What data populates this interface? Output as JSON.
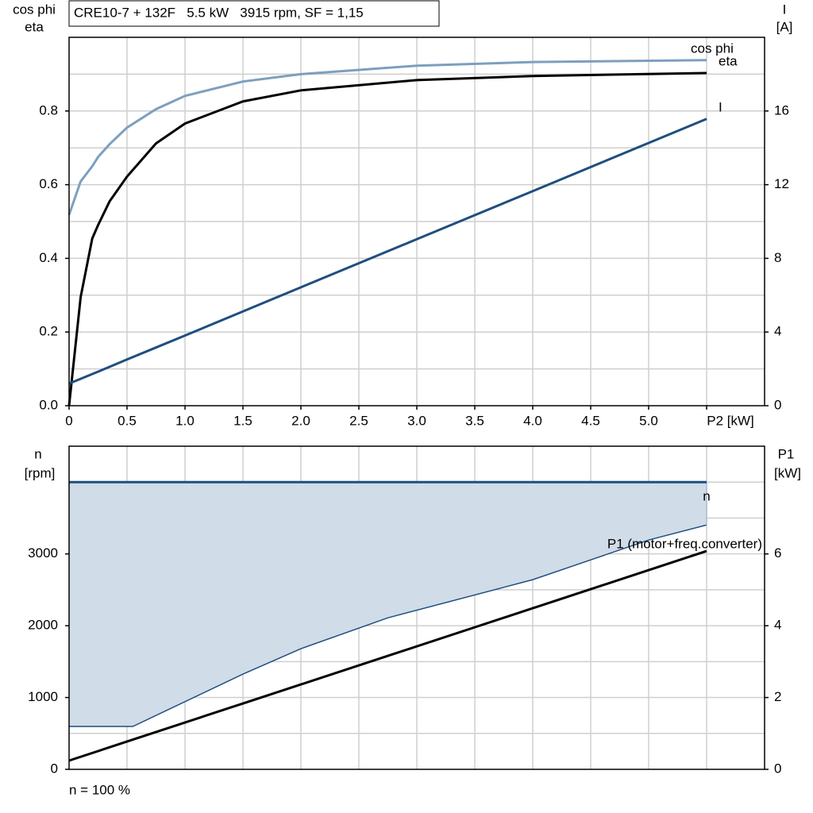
{
  "chart_data": [
    {
      "type": "line",
      "title": "CRE10-7 + 132F   5.5 kW   3915 rpm, SF = 1,15",
      "ylabel": [
        "cos phi",
        "eta"
      ],
      "y2label": [
        "I",
        "[A]"
      ],
      "x": [
        0,
        0.1,
        0.2,
        0.25,
        0.35,
        0.5,
        0.75,
        1.0,
        1.5,
        2.0,
        3.0,
        4.0,
        5.5
      ],
      "series": [
        {
          "name": "cos phi",
          "color": "#7d9fbf",
          "values": [
            0.518,
            0.609,
            0.65,
            0.675,
            0.71,
            0.755,
            0.805,
            0.841,
            0.88,
            0.9,
            0.923,
            0.933,
            0.938
          ]
        },
        {
          "name": "eta",
          "color": "#000000",
          "values": [
            0,
            0.295,
            0.454,
            0.49,
            0.555,
            0.622,
            0.712,
            0.766,
            0.826,
            0.856,
            0.884,
            0.895,
            0.903
          ]
        },
        {
          "name": "I",
          "color": "#1f4e7f",
          "axis": "y2",
          "values": [
            1.2,
            1.46,
            1.72,
            1.85,
            2.11,
            2.51,
            3.16,
            3.81,
            5.12,
            6.43,
            9.04,
            11.65,
            15.57
          ]
        }
      ],
      "xlim": [
        0,
        6
      ],
      "xticks": [
        0,
        0.5,
        {
          "value": 1,
          "label": "1.0"
        },
        1.5,
        {
          "value": 2,
          "label": "2.0"
        },
        2.5,
        {
          "value": 3,
          "label": "3.0"
        },
        3.5,
        {
          "value": 4,
          "label": "4.0"
        },
        4.5,
        {
          "value": 5,
          "label": "5.0"
        },
        {
          "value": 5.5,
          "label": "P2 [kW]"
        }
      ],
      "xgrid": [
        0.5,
        1,
        1.5,
        2,
        2.5,
        3,
        3.5,
        4,
        4.5,
        5,
        5.5
      ],
      "ylim": [
        0,
        1
      ],
      "yticks": [
        {
          "value": 0,
          "label": "0.0"
        },
        0.2,
        0.4,
        0.6,
        0.8
      ],
      "ygrid": [
        0.1,
        0.2,
        0.3,
        0.4,
        0.5,
        0.6,
        0.7,
        0.8,
        0.9
      ],
      "y2lim": [
        0,
        20
      ],
      "y2ticks": [
        0,
        4,
        8,
        12,
        16
      ]
    },
    {
      "type": "line",
      "ylabel": [
        "n",
        "[rpm]"
      ],
      "y2label": [
        "P1",
        "[kW]"
      ],
      "annotation": "n = 100 %",
      "x": [
        0,
        0.55,
        1.5,
        2.0,
        2.75,
        4.0,
        4.5,
        5.0,
        5.5
      ],
      "series": [
        {
          "name": "n",
          "color": "#1f4e7f",
          "fill": "#d0dce8",
          "values": [
            4000,
            4000,
            4000,
            4000,
            4000,
            4000,
            4000,
            4000,
            4000
          ],
          "lower": [
            597,
            597,
            1326,
            1680,
            2110,
            2641,
            2917,
            3193,
            3403
          ]
        },
        {
          "name": "P1 (motor+freq.converter)",
          "color": "#000000",
          "axis": "y2",
          "values": [
            0.243,
            0.827,
            1.835,
            2.365,
            3.161,
            4.487,
            5.018,
            5.548,
            6.08
          ]
        }
      ],
      "xlim": [
        0,
        6
      ],
      "xgrid": [
        0.5,
        1,
        1.5,
        2,
        2.5,
        3,
        3.5,
        4,
        4.5,
        5,
        5.5
      ],
      "ylim": [
        0,
        4500
      ],
      "yticks": [
        0,
        1000,
        2000,
        3000
      ],
      "ygrid": [
        500,
        1000,
        1500,
        2000,
        2500,
        3000,
        3500,
        4000
      ],
      "y2lim": [
        0,
        9
      ],
      "y2ticks": [
        0,
        2,
        4,
        6
      ]
    }
  ]
}
